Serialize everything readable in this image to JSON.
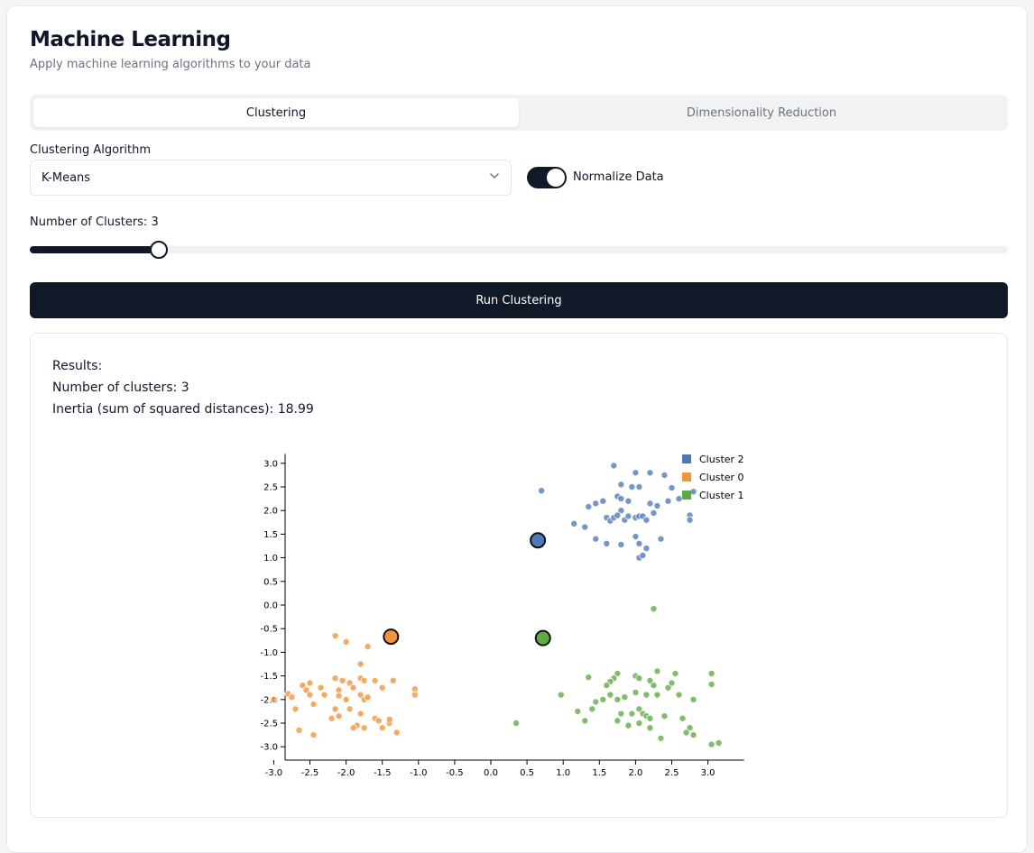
{
  "header": {
    "title": "Machine Learning",
    "subtitle": "Apply machine learning algorithms to your data"
  },
  "tabs": [
    {
      "label": "Clustering",
      "active": true
    },
    {
      "label": "Dimensionality Reduction",
      "active": false
    }
  ],
  "controls": {
    "algorithm_label": "Clustering Algorithm",
    "algorithm_value": "K-Means",
    "normalize_label": "Normalize Data",
    "normalize_on": true,
    "clusters_label": "Number of Clusters: 3",
    "clusters_value": 3,
    "run_label": "Run Clustering"
  },
  "results": {
    "heading": "Results:",
    "num_clusters_text": "Number of clusters: 3",
    "inertia_text": "Inertia (sum of squared distances): 18.99"
  },
  "colors": {
    "cluster0": "#f0953a",
    "cluster1": "#5faa46",
    "cluster2": "#4e79b7",
    "dark": "#111827"
  },
  "chart_data": {
    "type": "scatter",
    "xlim": [
      -3.3,
      3.5
    ],
    "ylim": [
      -3.3,
      3.2
    ],
    "x_ticks": [
      -3.0,
      -2.5,
      -2.0,
      -1.5,
      -1.0,
      -0.5,
      0.0,
      0.5,
      1.0,
      1.5,
      2.0,
      2.5,
      3.0
    ],
    "y_ticks": [
      3.0,
      2.5,
      2.0,
      1.5,
      1.0,
      0.5,
      0.0,
      -0.5,
      -1.0,
      -1.5,
      -2.0,
      -2.5,
      -3.0
    ],
    "x_tick_labels": [
      "-3.0",
      "-2.5",
      "-2.0",
      "-1.5",
      "-1.0",
      "-0.5",
      "0.0",
      "0.5",
      "1.0",
      "1.5",
      "2.0",
      "2.5",
      "3.0"
    ],
    "y_tick_labels": [
      "3.0",
      "2.5",
      "2.0",
      "1.5",
      "1.0",
      "0.5",
      "0.0",
      "-0.5",
      "-1.0",
      "-1.5",
      "-2.0",
      "-2.5",
      "-3.0"
    ],
    "legend": [
      "Cluster 2",
      "Cluster 0",
      "Cluster 1"
    ],
    "legend_position": "top-right",
    "series": [
      {
        "name": "Cluster 2",
        "color": "#4e79b7",
        "centroid": [
          0.65,
          1.37
        ],
        "points": [
          [
            1.7,
            2.95
          ],
          [
            2.0,
            2.8
          ],
          [
            2.2,
            2.8
          ],
          [
            2.4,
            2.75
          ],
          [
            1.8,
            2.55
          ],
          [
            1.95,
            2.5
          ],
          [
            2.05,
            2.5
          ],
          [
            2.5,
            2.48
          ],
          [
            2.8,
            2.4
          ],
          [
            0.7,
            2.42
          ],
          [
            1.75,
            2.3
          ],
          [
            1.8,
            2.25
          ],
          [
            1.9,
            2.2
          ],
          [
            1.55,
            2.2
          ],
          [
            1.45,
            2.15
          ],
          [
            2.2,
            2.15
          ],
          [
            2.3,
            2.1
          ],
          [
            1.35,
            2.08
          ],
          [
            2.45,
            2.2
          ],
          [
            2.6,
            2.25
          ],
          [
            1.8,
            2.0
          ],
          [
            1.6,
            1.85
          ],
          [
            1.65,
            1.78
          ],
          [
            1.7,
            1.85
          ],
          [
            1.75,
            1.9
          ],
          [
            1.85,
            1.8
          ],
          [
            1.9,
            1.88
          ],
          [
            2.0,
            1.85
          ],
          [
            2.05,
            1.88
          ],
          [
            2.1,
            1.88
          ],
          [
            2.15,
            1.8
          ],
          [
            2.25,
            1.95
          ],
          [
            1.15,
            1.72
          ],
          [
            1.3,
            1.65
          ],
          [
            2.75,
            1.9
          ],
          [
            2.75,
            1.8
          ],
          [
            2.0,
            1.45
          ],
          [
            2.05,
            1.3
          ],
          [
            2.15,
            1.2
          ],
          [
            2.35,
            1.4
          ],
          [
            1.45,
            1.4
          ],
          [
            1.6,
            1.3
          ],
          [
            1.8,
            1.28
          ],
          [
            2.05,
            1.0
          ],
          [
            2.1,
            1.05
          ]
        ]
      },
      {
        "name": "Cluster 0",
        "color": "#f0953a",
        "centroid": [
          -1.38,
          -0.67
        ],
        "points": [
          [
            -2.15,
            -0.65
          ],
          [
            -2.0,
            -0.78
          ],
          [
            -1.7,
            -0.88
          ],
          [
            -1.8,
            -1.25
          ],
          [
            -2.5,
            -1.65
          ],
          [
            -2.6,
            -1.7
          ],
          [
            -2.55,
            -1.8
          ],
          [
            -2.35,
            -1.75
          ],
          [
            -2.15,
            -1.55
          ],
          [
            -2.05,
            -1.6
          ],
          [
            -2.1,
            -1.8
          ],
          [
            -1.95,
            -1.65
          ],
          [
            -1.9,
            -1.75
          ],
          [
            -1.8,
            -1.55
          ],
          [
            -1.75,
            -1.6
          ],
          [
            -1.6,
            -1.6
          ],
          [
            -1.5,
            -1.75
          ],
          [
            -1.35,
            -1.6
          ],
          [
            -1.05,
            -1.78
          ],
          [
            -1.05,
            -1.9
          ],
          [
            -2.8,
            -1.88
          ],
          [
            -2.75,
            -1.95
          ],
          [
            -2.5,
            -1.9
          ],
          [
            -2.3,
            -1.9
          ],
          [
            -2.1,
            -1.92
          ],
          [
            -2.0,
            -2.0
          ],
          [
            -1.8,
            -1.9
          ],
          [
            -1.75,
            -2.0
          ],
          [
            -1.7,
            -1.95
          ],
          [
            -3.0,
            -2.0
          ],
          [
            -2.7,
            -2.2
          ],
          [
            -2.45,
            -2.1
          ],
          [
            -2.15,
            -2.2
          ],
          [
            -1.95,
            -2.2
          ],
          [
            -1.8,
            -2.3
          ],
          [
            -2.2,
            -2.4
          ],
          [
            -2.1,
            -2.35
          ],
          [
            -1.6,
            -2.4
          ],
          [
            -1.55,
            -2.45
          ],
          [
            -1.4,
            -2.5
          ],
          [
            -1.85,
            -2.55
          ],
          [
            -1.9,
            -2.6
          ],
          [
            -1.75,
            -2.6
          ],
          [
            -1.5,
            -2.6
          ],
          [
            -1.3,
            -2.7
          ],
          [
            -2.65,
            -2.65
          ],
          [
            -2.45,
            -2.75
          ],
          [
            -1.4,
            -2.42
          ]
        ]
      },
      {
        "name": "Cluster 1",
        "color": "#5faa46",
        "centroid": [
          0.72,
          -0.7
        ],
        "points": [
          [
            2.25,
            -0.08
          ],
          [
            1.75,
            -1.45
          ],
          [
            1.7,
            -1.55
          ],
          [
            2.0,
            -1.5
          ],
          [
            2.05,
            -1.55
          ],
          [
            2.3,
            -1.4
          ],
          [
            2.55,
            -1.45
          ],
          [
            1.35,
            -1.53
          ],
          [
            1.65,
            -1.62
          ],
          [
            1.6,
            -1.7
          ],
          [
            2.2,
            -1.6
          ],
          [
            2.25,
            -1.7
          ],
          [
            2.45,
            -1.75
          ],
          [
            2.5,
            -1.65
          ],
          [
            3.05,
            -1.45
          ],
          [
            3.05,
            -1.68
          ],
          [
            0.97,
            -1.9
          ],
          [
            1.65,
            -1.9
          ],
          [
            1.55,
            -2.0
          ],
          [
            1.75,
            -2.0
          ],
          [
            1.85,
            -1.95
          ],
          [
            2.0,
            -1.85
          ],
          [
            2.15,
            -1.9
          ],
          [
            2.3,
            -1.9
          ],
          [
            2.6,
            -1.9
          ],
          [
            2.8,
            -2.0
          ],
          [
            1.45,
            -2.05
          ],
          [
            1.2,
            -2.25
          ],
          [
            1.4,
            -2.2
          ],
          [
            1.8,
            -2.3
          ],
          [
            2.05,
            -2.2
          ],
          [
            1.95,
            -2.3
          ],
          [
            2.1,
            -2.3
          ],
          [
            2.15,
            -2.35
          ],
          [
            2.2,
            -2.4
          ],
          [
            2.4,
            -2.35
          ],
          [
            2.65,
            -2.4
          ],
          [
            1.3,
            -2.45
          ],
          [
            1.75,
            -2.45
          ],
          [
            1.9,
            -2.55
          ],
          [
            2.05,
            -2.5
          ],
          [
            2.2,
            -2.6
          ],
          [
            2.75,
            -2.6
          ],
          [
            2.7,
            -2.7
          ],
          [
            2.8,
            -2.75
          ],
          [
            2.35,
            -2.82
          ],
          [
            3.05,
            -2.95
          ],
          [
            3.15,
            -2.92
          ],
          [
            0.35,
            -2.5
          ]
        ]
      }
    ]
  }
}
